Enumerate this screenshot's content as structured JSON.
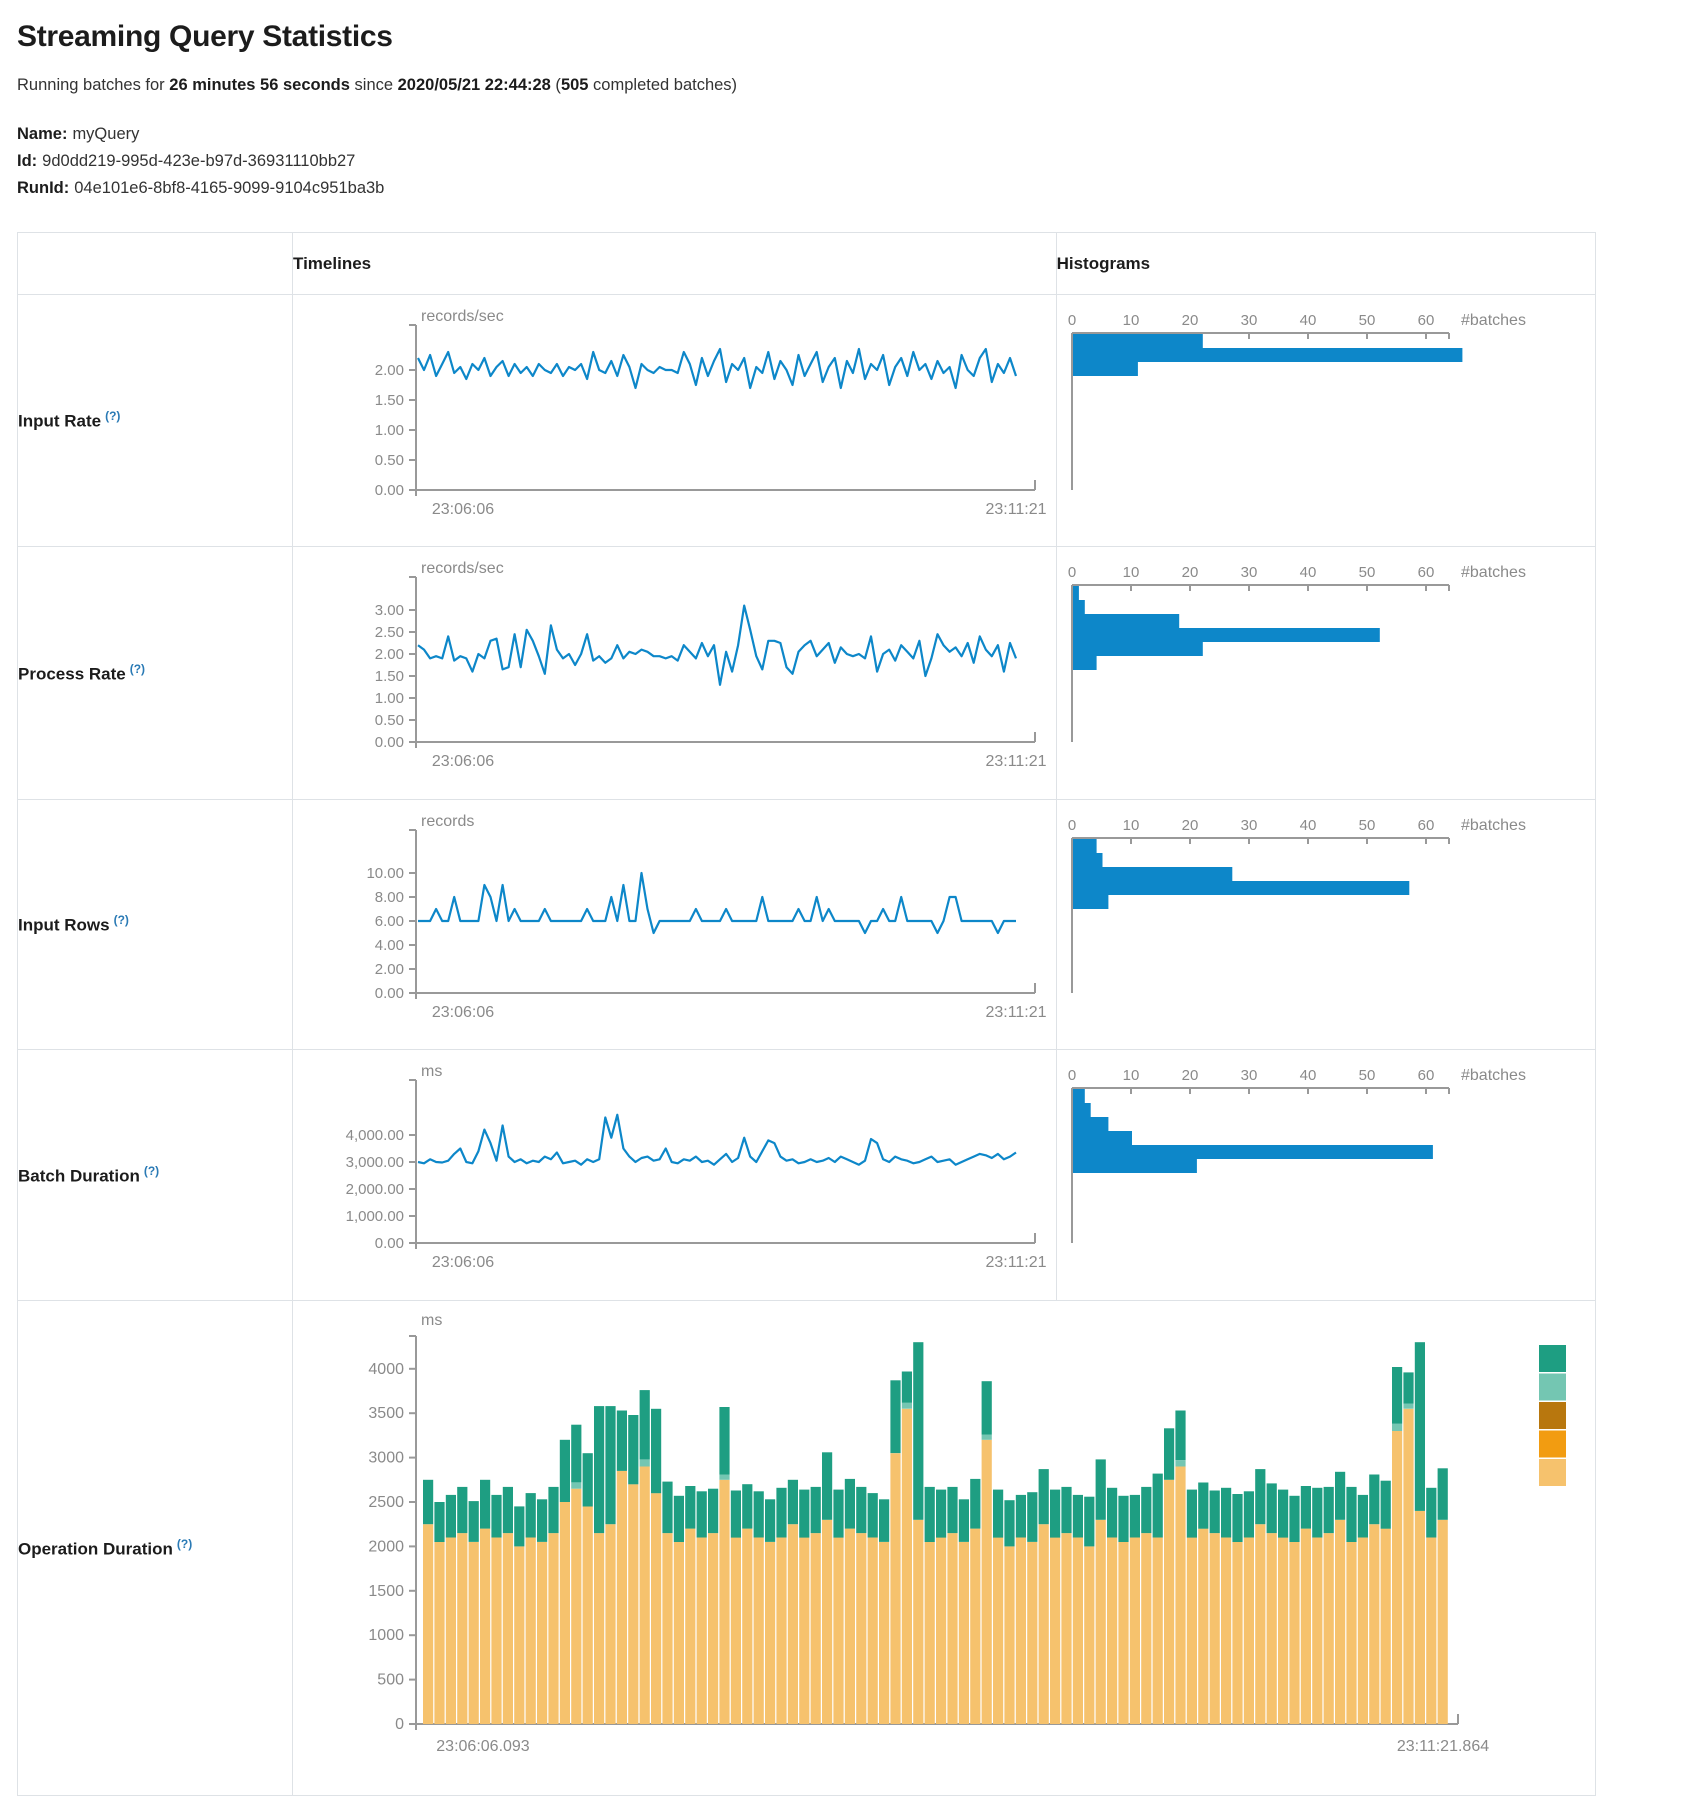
{
  "header": {
    "title": "Streaming Query Statistics",
    "running": {
      "p1": "Running batches for ",
      "duration": "26 minutes 56 seconds",
      "p2": " since ",
      "start": "2020/05/21 22:44:28",
      "p3": " (",
      "batches": "505",
      "p4": " completed batches)"
    }
  },
  "meta": {
    "name_label": "Name:",
    "name_value": "myQuery",
    "id_label": "Id:",
    "id_value": "9d0dd219-995d-423e-b97d-36931110bb27",
    "runid_label": "RunId:",
    "runid_value": "04e101e6-8bf8-4165-9099-9104c951ba3b"
  },
  "table": {
    "timelines_header": "Timelines",
    "histograms_header": "Histograms",
    "hint": "(?)"
  },
  "colors": {
    "line_blue": "#0D87C9",
    "axis_gray": "#999999",
    "tick_text": "#8a8a8a",
    "border": "#dee2e6",
    "green": "#1E9E82",
    "light_green": "#74C6B2",
    "brown": "#B8770E",
    "orange": "#F29C11",
    "tan": "#F6C26D"
  },
  "chart_data": [
    {
      "name": "Input Rate",
      "type": "line",
      "unit": "records/sec",
      "x_start": "23:06:06",
      "x_end": "23:11:21",
      "ylim": [
        0,
        2.5
      ],
      "y_ticks": {
        "values": [
          0,
          0.5,
          1,
          1.5,
          2
        ],
        "labels": [
          "0.00",
          "0.50",
          "1.00",
          "1.50",
          "2.00"
        ]
      },
      "values": [
        2.2,
        2.0,
        2.25,
        1.9,
        2.1,
        2.3,
        1.95,
        2.05,
        1.85,
        2.1,
        2.0,
        2.2,
        1.9,
        2.05,
        2.15,
        1.9,
        2.1,
        1.95,
        2.05,
        1.9,
        2.1,
        2.0,
        1.95,
        2.1,
        1.9,
        2.05,
        2.0,
        2.1,
        1.85,
        2.3,
        2.0,
        1.95,
        2.15,
        1.9,
        2.25,
        2.05,
        1.7,
        2.1,
        2.0,
        1.95,
        2.05,
        2.0,
        2.0,
        1.95,
        2.3,
        2.1,
        1.75,
        2.2,
        1.9,
        2.15,
        2.35,
        1.8,
        2.1,
        2.0,
        2.2,
        1.7,
        2.05,
        1.95,
        2.3,
        1.85,
        2.15,
        2.0,
        1.75,
        2.25,
        1.9,
        2.1,
        2.3,
        1.8,
        2.05,
        2.2,
        1.7,
        2.15,
        1.95,
        2.35,
        1.85,
        2.1,
        2.0,
        2.25,
        1.75,
        2.05,
        2.2,
        1.9,
        2.3,
        2.0,
        2.1,
        1.85,
        2.15,
        1.95,
        2.05,
        1.7,
        2.25,
        2.0,
        1.9,
        2.2,
        2.35,
        1.8,
        2.1,
        1.95,
        2.2,
        1.9
      ],
      "histogram": {
        "type": "bar",
        "orientation": "horizontal",
        "xlabel": "#batches",
        "x_ticks": {
          "values": [
            0,
            10,
            20,
            30,
            40,
            50,
            60
          ],
          "labels": [
            "0",
            "10",
            "20",
            "30",
            "40",
            "50",
            "60"
          ]
        },
        "bin_counts": [
          22,
          66,
          11
        ]
      }
    },
    {
      "name": "Process Rate",
      "type": "line",
      "unit": "records/sec",
      "x_start": "23:06:06",
      "x_end": "23:11:21",
      "ylim": [
        0,
        3.5
      ],
      "y_ticks": {
        "values": [
          0,
          0.5,
          1,
          1.5,
          2,
          2.5,
          3
        ],
        "labels": [
          "0.00",
          "0.50",
          "1.00",
          "1.50",
          "2.00",
          "2.50",
          "3.00"
        ]
      },
      "values": [
        2.2,
        2.1,
        1.9,
        1.95,
        1.9,
        2.4,
        1.85,
        1.95,
        1.9,
        1.6,
        2.0,
        1.9,
        2.3,
        2.35,
        1.65,
        1.7,
        2.45,
        1.7,
        2.55,
        2.3,
        1.95,
        1.55,
        2.65,
        2.1,
        1.9,
        2.0,
        1.75,
        2.0,
        2.45,
        1.85,
        1.95,
        1.8,
        1.9,
        2.2,
        1.9,
        2.05,
        2.0,
        2.1,
        2.05,
        1.95,
        1.95,
        1.9,
        1.95,
        1.85,
        2.2,
        2.05,
        1.9,
        2.25,
        1.95,
        2.2,
        1.3,
        2.05,
        1.6,
        2.2,
        3.1,
        2.55,
        1.95,
        1.65,
        2.3,
        2.3,
        2.25,
        1.7,
        1.55,
        2.05,
        2.2,
        2.3,
        1.95,
        2.1,
        2.25,
        1.8,
        2.15,
        2.0,
        1.95,
        2.0,
        1.9,
        2.4,
        1.6,
        2.0,
        2.1,
        1.85,
        2.2,
        2.05,
        1.9,
        2.3,
        1.5,
        1.9,
        2.45,
        2.2,
        2.05,
        2.15,
        1.95,
        2.25,
        1.8,
        2.4,
        2.1,
        1.95,
        2.2,
        1.6,
        2.25,
        1.9
      ],
      "histogram": {
        "type": "bar",
        "orientation": "horizontal",
        "xlabel": "#batches",
        "x_ticks": {
          "values": [
            0,
            10,
            20,
            30,
            40,
            50,
            60
          ],
          "labels": [
            "0",
            "10",
            "20",
            "30",
            "40",
            "50",
            "60"
          ]
        },
        "bin_counts": [
          1,
          2,
          18,
          52,
          22,
          4
        ]
      }
    },
    {
      "name": "Input Rows",
      "type": "line",
      "unit": "records",
      "x_start": "23:06:06",
      "x_end": "23:11:21",
      "ylim": [
        0,
        10.5
      ],
      "y_ticks": {
        "values": [
          0,
          2,
          4,
          6,
          8,
          10
        ],
        "labels": [
          "0.00",
          "2.00",
          "4.00",
          "6.00",
          "8.00",
          "10.00"
        ]
      },
      "values": [
        6,
        6,
        6,
        7,
        6,
        6,
        8,
        6,
        6,
        6,
        6,
        9,
        8,
        6,
        9,
        6,
        7,
        6,
        6,
        6,
        6,
        7,
        6,
        6,
        6,
        6,
        6,
        6,
        7,
        6,
        6,
        6,
        8,
        6,
        9,
        6,
        6,
        10,
        7,
        5,
        6,
        6,
        6,
        6,
        6,
        6,
        7,
        6,
        6,
        6,
        6,
        7,
        6,
        6,
        6,
        6,
        6,
        8,
        6,
        6,
        6,
        6,
        6,
        7,
        6,
        6,
        8,
        6,
        7,
        6,
        6,
        6,
        6,
        6,
        5,
        6,
        6,
        7,
        6,
        6,
        8,
        6,
        6,
        6,
        6,
        6,
        5,
        6,
        8,
        8,
        6,
        6,
        6,
        6,
        6,
        6,
        5,
        6,
        6,
        6
      ],
      "histogram": {
        "type": "bar",
        "orientation": "horizontal",
        "xlabel": "#batches",
        "x_ticks": {
          "values": [
            0,
            10,
            20,
            30,
            40,
            50,
            60
          ],
          "labels": [
            "0",
            "10",
            "20",
            "30",
            "40",
            "50",
            "60"
          ]
        },
        "bin_counts": [
          4,
          5,
          27,
          57,
          6
        ]
      }
    },
    {
      "name": "Batch Duration",
      "type": "line",
      "unit": "ms",
      "x_start": "23:06:06",
      "x_end": "23:11:21",
      "ylim": [
        0,
        5000
      ],
      "y_ticks": {
        "values": [
          0,
          1000,
          2000,
          3000,
          4000
        ],
        "labels": [
          "0.00",
          "1,000.00",
          "2,000.00",
          "3,000.00",
          "4,000.00"
        ]
      },
      "values": [
        3000,
        2950,
        3100,
        3000,
        2980,
        3050,
        3300,
        3500,
        3000,
        2950,
        3400,
        4200,
        3700,
        3050,
        4350,
        3200,
        3000,
        3100,
        2950,
        3050,
        3000,
        3200,
        3100,
        3350,
        2950,
        3000,
        3050,
        2900,
        3100,
        3000,
        3100,
        4650,
        3900,
        4750,
        3500,
        3200,
        3000,
        3150,
        3200,
        3050,
        3100,
        3500,
        3000,
        2950,
        3100,
        3050,
        3200,
        3000,
        3050,
        2900,
        3100,
        3300,
        3000,
        3150,
        3900,
        3200,
        3000,
        3400,
        3800,
        3700,
        3200,
        3050,
        3100,
        2950,
        3000,
        3100,
        3000,
        3050,
        3150,
        3000,
        3200,
        3100,
        3000,
        2900,
        3050,
        3850,
        3700,
        3100,
        3000,
        3200,
        3100,
        3050,
        2950,
        3000,
        3100,
        3200,
        3000,
        3050,
        3100,
        2900,
        3000,
        3100,
        3200,
        3300,
        3250,
        3150,
        3300,
        3100,
        3200,
        3350
      ],
      "histogram": {
        "type": "bar",
        "orientation": "horizontal",
        "xlabel": "#batches",
        "x_ticks": {
          "values": [
            0,
            10,
            20,
            30,
            40,
            50,
            60
          ],
          "labels": [
            "0",
            "10",
            "20",
            "30",
            "40",
            "50",
            "60"
          ]
        },
        "bin_counts": [
          2,
          3,
          6,
          10,
          61,
          21
        ]
      }
    },
    {
      "name": "Operation Duration",
      "type": "stacked-bar",
      "unit": "ms",
      "x_start": "23:06:06.093",
      "x_end": "23:11:21.864",
      "ylim": [
        0,
        4400
      ],
      "y_ticks": {
        "values": [
          0,
          500,
          1000,
          1500,
          2000,
          2500,
          3000,
          3500,
          4000
        ],
        "labels": [
          "0",
          "500",
          "1000",
          "1500",
          "2000",
          "2500",
          "3000",
          "3500",
          "4000"
        ]
      },
      "legend_color_keys": [
        "green",
        "light_green",
        "brown",
        "orange",
        "tan"
      ],
      "series": [
        {
          "name": "bottom-segment",
          "color_key": "tan",
          "values": [
            2250,
            2050,
            2100,
            2150,
            2050,
            2200,
            2100,
            2150,
            2000,
            2100,
            2050,
            2150,
            2500,
            2650,
            2450,
            2150,
            2250,
            2850,
            2700,
            2900,
            2600,
            2150,
            2050,
            2200,
            2100,
            2150,
            2750,
            2100,
            2200,
            2100,
            2050,
            2100,
            2250,
            2100,
            2150,
            2300,
            2100,
            2200,
            2150,
            2100,
            2050,
            3050,
            3550,
            2300,
            2050,
            2100,
            2150,
            2050,
            2200,
            3200,
            2100,
            2000,
            2100,
            2050,
            2250,
            2100,
            2150,
            2100,
            2000,
            2300,
            2100,
            2050,
            2100,
            2150,
            2100,
            2750,
            2900,
            2100,
            2200,
            2150,
            2100,
            2050,
            2100,
            2250,
            2150,
            2100,
            2050,
            2200,
            2100,
            2150,
            2300,
            2050,
            2100,
            2250,
            2200,
            3300,
            3550,
            2400,
            2100,
            2300
          ]
        },
        {
          "name": "middle-segment",
          "color_key": "light_green",
          "values": [
            0,
            0,
            0,
            0,
            0,
            0,
            0,
            0,
            0,
            0,
            0,
            0,
            0,
            70,
            0,
            0,
            0,
            0,
            0,
            80,
            0,
            0,
            0,
            0,
            0,
            0,
            60,
            0,
            0,
            0,
            0,
            0,
            0,
            0,
            0,
            0,
            0,
            0,
            0,
            0,
            0,
            0,
            70,
            0,
            0,
            0,
            0,
            0,
            0,
            60,
            0,
            0,
            0,
            0,
            0,
            0,
            0,
            0,
            0,
            0,
            0,
            0,
            0,
            0,
            0,
            0,
            70,
            0,
            0,
            0,
            0,
            0,
            0,
            0,
            0,
            0,
            0,
            0,
            0,
            0,
            0,
            0,
            0,
            0,
            0,
            80,
            60,
            0,
            0,
            0
          ]
        },
        {
          "name": "top-segment",
          "color_key": "green",
          "values": [
            500,
            450,
            480,
            520,
            460,
            550,
            480,
            520,
            450,
            500,
            480,
            520,
            700,
            650,
            600,
            1430,
            1330,
            680,
            780,
            780,
            950,
            580,
            520,
            480,
            520,
            500,
            760,
            530,
            500,
            520,
            480,
            560,
            500,
            540,
            520,
            760,
            540,
            560,
            520,
            500,
            480,
            820,
            350,
            2000,
            620,
            540,
            520,
            480,
            560,
            600,
            540,
            520,
            480,
            560,
            620,
            540,
            520,
            480,
            560,
            680,
            560,
            520,
            480,
            520,
            720,
            580,
            560,
            540,
            520,
            480,
            560,
            540,
            520,
            620,
            560,
            540,
            520,
            480,
            560,
            520,
            540,
            620,
            480,
            560,
            540,
            640,
            350,
            1900,
            560,
            580
          ]
        }
      ]
    }
  ]
}
